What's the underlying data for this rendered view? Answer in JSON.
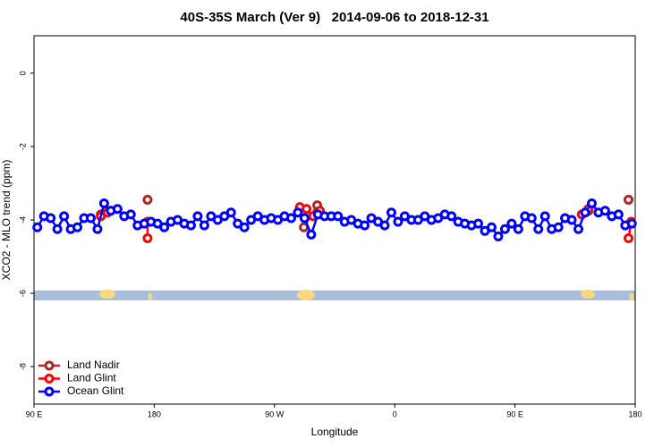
{
  "chart_data": {
    "type": "line",
    "title": "40S-35S March (Ver 9)   2014-09-06 to 2018-12-31",
    "x_label": "Longitude",
    "y_label": "XCO2 - MLO trend (ppm)",
    "xlim": [
      90,
      540
    ],
    "xticks": [
      {
        "value": 90,
        "label": "90 E"
      },
      180,
      {
        "value": 270,
        "label": "90 W"
      },
      {
        "value": 360,
        "label": "0"
      },
      {
        "value": 450,
        "label": "90 E"
      },
      {
        "value": 540,
        "label": "180"
      }
    ],
    "ylim": [
      -9.02,
      1.02
    ],
    "yticks": [
      0,
      -2,
      -4,
      -6,
      -8
    ],
    "legend": "bottom-left",
    "series": [
      {
        "name": "Land Nadir",
        "color": "#a52a2a",
        "x": [
          140,
          null,
          175,
          null,
          292,
          302,
          null,
          505,
          null,
          535
        ],
        "values": [
          -3.85,
          null,
          -3.45,
          null,
          -4.2,
          -3.6,
          null,
          -3.75,
          null,
          -3.45
        ]
      },
      {
        "name": "Land Glint",
        "color": "#ff0000",
        "x": [
          140,
          145,
          null,
          175,
          175,
          null,
          289,
          294,
          299,
          304,
          null,
          500,
          505,
          null,
          535,
          537
        ],
        "values": [
          -3.9,
          -3.8,
          null,
          -4.05,
          -4.5,
          null,
          -3.65,
          -3.7,
          -3.9,
          -3.75,
          null,
          -3.85,
          -3.7,
          null,
          -4.5,
          -4.05
        ]
      },
      {
        "name": "Ocean Glint",
        "color": "#0000ff",
        "x": [
          92.5,
          97.5,
          102.5,
          107.5,
          112.5,
          117.5,
          122.5,
          127.5,
          132.5,
          137.5,
          142.5,
          147.5,
          152.5,
          157.5,
          162.5,
          167.5,
          172.5,
          177.5,
          182.5,
          187.5,
          192.5,
          197.5,
          202.5,
          207.5,
          212.5,
          217.5,
          222.5,
          227.5,
          232.5,
          237.5,
          242.5,
          247.5,
          252.5,
          257.5,
          262.5,
          267.5,
          272.5,
          277.5,
          282.5,
          287.5,
          292.5,
          297.5,
          302.5,
          307.5,
          312.5,
          317.5,
          322.5,
          327.5,
          332.5,
          337.5,
          342.5,
          347.5,
          352.5,
          357.5,
          362.5,
          367.5,
          372.5,
          377.5,
          382.5,
          387.5,
          392.5,
          397.5,
          402.5,
          407.5,
          412.5,
          417.5,
          422.5,
          427.5,
          432.5,
          437.5,
          442.5,
          447.5,
          452.5,
          457.5,
          462.5,
          467.5,
          472.5,
          477.5,
          482.5,
          487.5,
          492.5,
          497.5,
          502.5,
          507.5,
          512.5,
          517.5,
          522.5,
          527.5,
          532.5,
          537.5
        ],
        "values": [
          -4.2,
          -3.9,
          -3.95,
          -4.25,
          -3.9,
          -4.25,
          -4.2,
          -3.95,
          -3.95,
          -4.25,
          -3.55,
          -3.75,
          -3.7,
          -3.9,
          -3.85,
          -4.15,
          -4.1,
          -4.05,
          -4.1,
          -4.2,
          -4.05,
          -4.0,
          -4.1,
          -4.15,
          -3.9,
          -4.15,
          -3.9,
          -4.0,
          -3.9,
          -3.8,
          -4.1,
          -4.2,
          -4.0,
          -3.9,
          -4.0,
          -3.95,
          -4.0,
          -3.9,
          -3.95,
          -3.8,
          -3.95,
          -4.4,
          -3.85,
          -3.9,
          -3.9,
          -3.9,
          -4.05,
          -4.0,
          -4.1,
          -4.15,
          -3.95,
          -4.05,
          -4.15,
          -3.8,
          -4.05,
          -3.9,
          -4.0,
          -4.0,
          -3.9,
          -4.0,
          -3.95,
          -3.85,
          -3.9,
          -4.05,
          -4.1,
          -4.15,
          -4.1,
          -4.3,
          -4.2,
          -4.45,
          -4.25,
          -4.1,
          -4.25,
          -3.9,
          -3.95,
          -4.25,
          -3.9,
          -4.25,
          -4.2,
          -3.95,
          -4.0,
          -4.25,
          -3.8,
          -3.55,
          -3.8,
          -3.75,
          -3.9,
          -3.85,
          -4.15,
          -4.1
        ]
      }
    ]
  }
}
